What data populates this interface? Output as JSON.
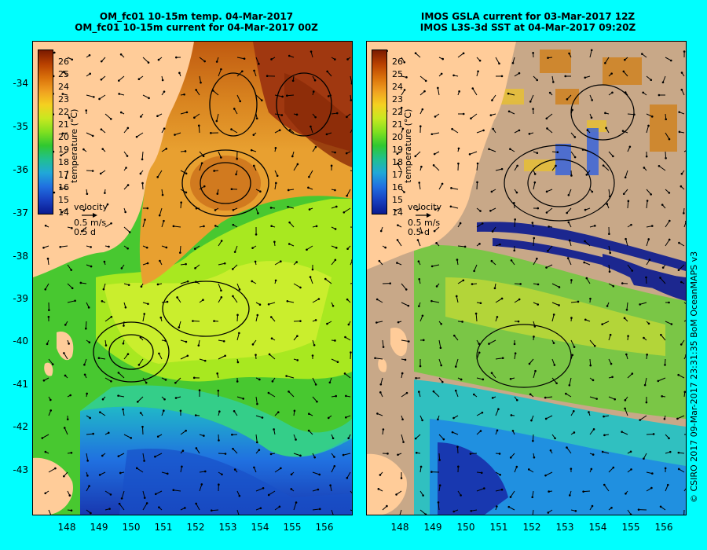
{
  "left_panel": {
    "title_line1": "OM_fc01 10-15m temp. 04-Mar-2017",
    "title_line2": "OM_fc01 10-15m current for 04-Mar-2017 00Z"
  },
  "right_panel": {
    "title_line1": "IMOS GSLA current for 03-Mar-2017 12Z",
    "title_line2": "IMOS L3S-3d SST at 04-Mar-2017 09:20Z"
  },
  "colorbar": {
    "ticks": [
      "26",
      "25",
      "24",
      "23",
      "22",
      "21",
      "20",
      "19",
      "18",
      "17",
      "16",
      "15",
      "14"
    ],
    "label": "temperature (°C)",
    "colors": [
      "#7a1a00",
      "#b84000",
      "#d9700a",
      "#f0a020",
      "#f5d020",
      "#c8e820",
      "#80e020",
      "#30c830",
      "#20c090",
      "#20a8d8",
      "#2070e0",
      "#1840c0",
      "#0a1a90"
    ]
  },
  "velocity_key": {
    "title": "velocity",
    "speed": "0.5 m/s",
    "duration": "0.5 d"
  },
  "lat_labels": [
    "-34",
    "-35",
    "-36",
    "-37",
    "-38",
    "-39",
    "-40",
    "-41",
    "-42",
    "-43"
  ],
  "lon_labels": [
    "148",
    "149",
    "150",
    "151",
    "152",
    "153",
    "154",
    "155",
    "156"
  ],
  "credit": "© CSIRO 2017   09-Mar-2017 23:31:35 BoM OceanMAPS v3",
  "colors": {
    "background": "#00ffff",
    "land": "#ffcc99",
    "missing_data": "#c8a888"
  }
}
